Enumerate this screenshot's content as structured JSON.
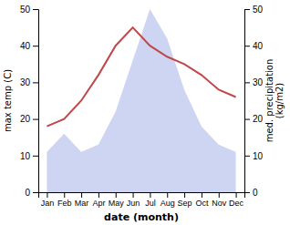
{
  "chart_data": {
    "type": "line",
    "xlabel": "date (month)",
    "ylabel": "max temp (C)",
    "y2label": "med. precipitation\n(kg/m2)",
    "categories": [
      "Jan",
      "Feb",
      "Mar",
      "Apr",
      "May",
      "Jun",
      "Jul",
      "Aug",
      "Sep",
      "Oct",
      "Nov",
      "Dec"
    ],
    "series": [
      {
        "type": "area",
        "color": "#c5cef0",
        "values": [
          11,
          16,
          11,
          13,
          22,
          36,
          50,
          42,
          28,
          18,
          13,
          11
        ]
      },
      {
        "type": "line",
        "color": "#c0474a",
        "values": [
          18,
          20,
          25,
          32,
          40,
          45,
          40,
          37,
          35,
          32,
          28,
          26
        ]
      }
    ],
    "ylim": [
      0,
      50
    ],
    "yticks": [
      0,
      10,
      20,
      30,
      40,
      50
    ],
    "y2lim": [
      0,
      50
    ],
    "y2ticks": [
      0,
      10,
      20,
      30,
      40,
      50
    ],
    "grid": false
  }
}
